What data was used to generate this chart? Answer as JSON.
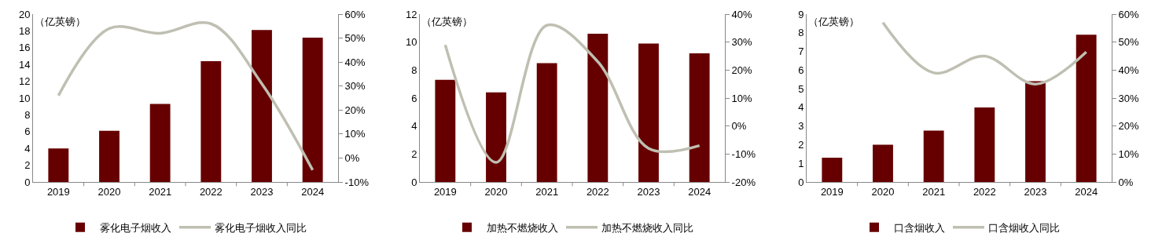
{
  "chart_data": [
    {
      "type": "bar",
      "categories": [
        "2019",
        "2020",
        "2021",
        "2022",
        "2023",
        "2024"
      ],
      "annotations": [
        "（亿英镑）"
      ],
      "legend": "bottom",
      "ylim": [
        0,
        20
      ],
      "yticks": [
        0,
        2,
        4,
        6,
        8,
        10,
        12,
        14,
        16,
        18,
        20
      ],
      "y2lim": [
        -10,
        60
      ],
      "y2ticks": [
        {
          "value": -10,
          "label": "-10%"
        },
        {
          "value": 0,
          "label": "0%"
        },
        {
          "value": 10,
          "label": "10%"
        },
        {
          "value": 20,
          "label": "20%"
        },
        {
          "value": 30,
          "label": "30%"
        },
        {
          "value": 40,
          "label": "40%"
        },
        {
          "value": 50,
          "label": "50%"
        },
        {
          "value": 60,
          "label": "60%"
        }
      ],
      "series": [
        {
          "name": "雾化电子烟收入",
          "color": "#660000",
          "values": [
            4.0,
            6.1,
            9.3,
            14.4,
            18.1,
            17.2
          ]
        },
        {
          "type": "line",
          "name": "雾化电子烟收入同比",
          "color": "#bfbfb2",
          "axis": "y2",
          "marker": "none",
          "values": [
            26,
            54,
            52,
            56,
            31,
            -5
          ]
        }
      ]
    },
    {
      "type": "bar",
      "categories": [
        "2019",
        "2020",
        "2021",
        "2022",
        "2023",
        "2024"
      ],
      "annotations": [
        "（亿英镑）"
      ],
      "legend": "bottom",
      "ylim": [
        0,
        12
      ],
      "yticks": [
        0,
        2,
        4,
        6,
        8,
        10,
        12
      ],
      "y2lim": [
        -20,
        40
      ],
      "y2ticks": [
        {
          "value": -20,
          "label": "-20%"
        },
        {
          "value": -10,
          "label": "-10%"
        },
        {
          "value": 0,
          "label": "0%"
        },
        {
          "value": 10,
          "label": "10%"
        },
        {
          "value": 20,
          "label": "20%"
        },
        {
          "value": 30,
          "label": "30%"
        },
        {
          "value": 40,
          "label": "40%"
        }
      ],
      "series": [
        {
          "name": "加热不燃烧收入",
          "color": "#660000",
          "values": [
            7.3,
            6.4,
            8.5,
            10.6,
            9.9,
            9.2
          ]
        },
        {
          "type": "line",
          "name": "加热不燃烧收入同比",
          "color": "#bfbfb2",
          "axis": "y2",
          "marker": "none",
          "values": [
            29,
            -13,
            36,
            23,
            -8,
            -7
          ]
        }
      ]
    },
    {
      "type": "bar",
      "categories": [
        "2019",
        "2020",
        "2021",
        "2022",
        "2023",
        "2024"
      ],
      "annotations": [
        "（亿英镑）"
      ],
      "legend": "bottom",
      "ylim": [
        0,
        9
      ],
      "yticks": [
        0,
        1,
        2,
        3,
        4,
        5,
        6,
        7,
        8,
        9
      ],
      "y2lim": [
        0,
        60
      ],
      "y2ticks": [
        {
          "value": 0,
          "label": "0%"
        },
        {
          "value": 10,
          "label": "10%"
        },
        {
          "value": 20,
          "label": "20%"
        },
        {
          "value": 30,
          "label": "30%"
        },
        {
          "value": 40,
          "label": "40%"
        },
        {
          "value": 50,
          "label": "50%"
        },
        {
          "value": 60,
          "label": "60%"
        }
      ],
      "series": [
        {
          "name": "口含烟收入",
          "color": "#660000",
          "values": [
            1.3,
            2.0,
            2.75,
            4.0,
            5.4,
            7.9
          ]
        },
        {
          "type": "line",
          "name": "口含烟收入同比",
          "color": "#bfbfb2",
          "axis": "y2",
          "marker": "none",
          "values": [
            null,
            57,
            39,
            45,
            35,
            46.5
          ]
        }
      ]
    }
  ]
}
